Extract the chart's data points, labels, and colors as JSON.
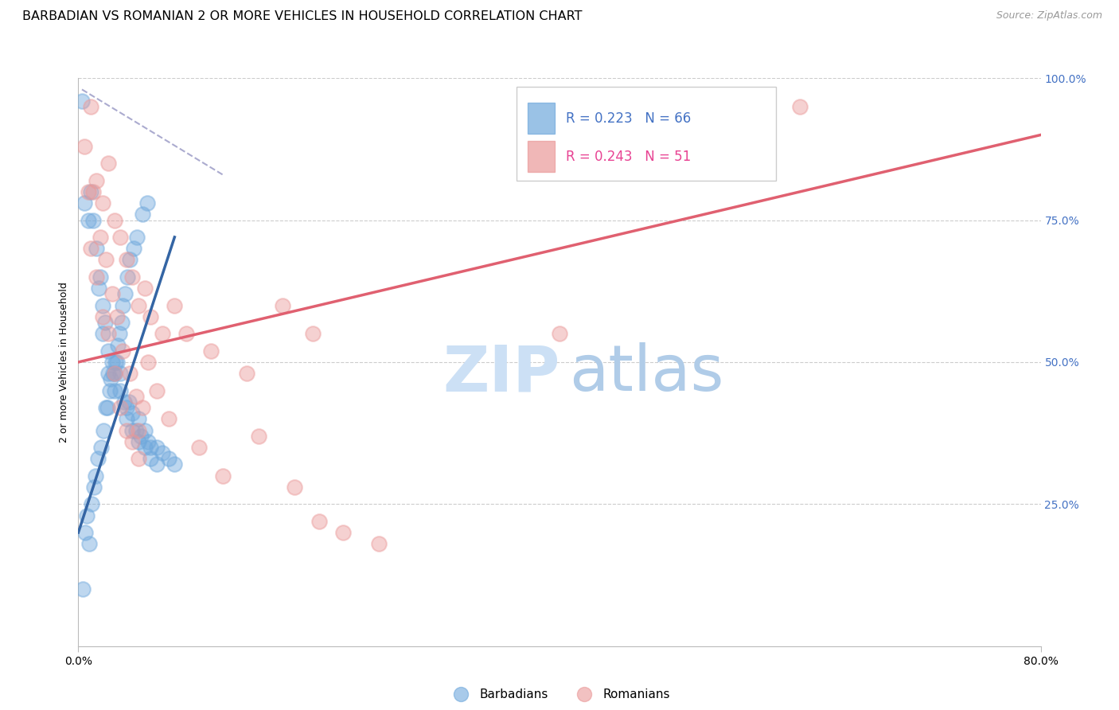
{
  "title": "BARBADIAN VS ROMANIAN 2 OR MORE VEHICLES IN HOUSEHOLD CORRELATION CHART",
  "source": "Source: ZipAtlas.com",
  "ylabel": "2 or more Vehicles in Household",
  "xlim": [
    0.0,
    80.0
  ],
  "ylim": [
    0.0,
    100.0
  ],
  "legend_blue_r": "R = 0.223",
  "legend_blue_n": "N = 66",
  "legend_pink_r": "R = 0.243",
  "legend_pink_n": "N = 51",
  "legend_label_blue": "Barbadians",
  "legend_label_pink": "Romanians",
  "blue_scatter_x": [
    0.5,
    1.0,
    1.2,
    1.5,
    1.8,
    2.0,
    2.0,
    2.2,
    2.5,
    2.5,
    2.8,
    3.0,
    3.0,
    3.2,
    3.5,
    3.5,
    3.8,
    4.0,
    4.0,
    4.2,
    4.5,
    4.5,
    4.8,
    5.0,
    5.0,
    5.2,
    5.5,
    5.5,
    5.8,
    6.0,
    6.0,
    6.5,
    6.5,
    7.0,
    7.5,
    8.0,
    0.3,
    0.4,
    0.6,
    0.7,
    0.8,
    0.9,
    1.1,
    1.3,
    1.4,
    1.6,
    1.7,
    1.9,
    2.1,
    2.3,
    2.4,
    2.6,
    2.7,
    2.9,
    3.1,
    3.3,
    3.4,
    3.6,
    3.7,
    3.9,
    4.1,
    4.3,
    4.6,
    4.9,
    5.3,
    5.7
  ],
  "blue_scatter_y": [
    78.0,
    80.0,
    75.0,
    70.0,
    65.0,
    60.0,
    55.0,
    57.0,
    52.0,
    48.0,
    50.0,
    48.0,
    45.0,
    50.0,
    48.0,
    45.0,
    43.0,
    42.0,
    40.0,
    43.0,
    41.0,
    38.0,
    38.0,
    40.0,
    36.0,
    37.0,
    38.0,
    35.0,
    36.0,
    35.0,
    33.0,
    35.0,
    32.0,
    34.0,
    33.0,
    32.0,
    96.0,
    10.0,
    20.0,
    23.0,
    75.0,
    18.0,
    25.0,
    28.0,
    30.0,
    33.0,
    63.0,
    35.0,
    38.0,
    42.0,
    42.0,
    45.0,
    47.0,
    48.0,
    50.0,
    53.0,
    55.0,
    57.0,
    60.0,
    62.0,
    65.0,
    68.0,
    70.0,
    72.0,
    76.0,
    78.0
  ],
  "pink_scatter_x": [
    1.0,
    1.5,
    2.0,
    2.5,
    3.0,
    3.5,
    4.0,
    4.5,
    5.0,
    5.5,
    6.0,
    7.0,
    8.0,
    10.0,
    12.0,
    15.0,
    18.0,
    20.0,
    22.0,
    25.0,
    0.5,
    1.2,
    1.8,
    2.3,
    2.8,
    3.2,
    3.7,
    4.3,
    4.8,
    5.3,
    5.8,
    6.5,
    7.5,
    9.0,
    11.0,
    14.0,
    17.0,
    19.5,
    5.0,
    40.0,
    0.8,
    1.0,
    1.5,
    2.0,
    2.5,
    3.0,
    3.5,
    4.0,
    4.5,
    5.0,
    60.0
  ],
  "pink_scatter_y": [
    95.0,
    82.0,
    78.0,
    85.0,
    75.0,
    72.0,
    68.0,
    65.0,
    60.0,
    63.0,
    58.0,
    55.0,
    60.0,
    35.0,
    30.0,
    37.0,
    28.0,
    22.0,
    20.0,
    18.0,
    88.0,
    80.0,
    72.0,
    68.0,
    62.0,
    58.0,
    52.0,
    48.0,
    44.0,
    42.0,
    50.0,
    45.0,
    40.0,
    55.0,
    52.0,
    48.0,
    60.0,
    55.0,
    38.0,
    55.0,
    80.0,
    70.0,
    65.0,
    58.0,
    55.0,
    48.0,
    42.0,
    38.0,
    36.0,
    33.0,
    95.0
  ],
  "blue_line_x1": 0.0,
  "blue_line_y1": 20.0,
  "blue_line_x2": 8.0,
  "blue_line_y2": 72.0,
  "blue_dash_x1": 0.3,
  "blue_dash_y1": 98.0,
  "blue_dash_x2": 12.0,
  "blue_dash_y2": 83.0,
  "pink_line_x1": 0.0,
  "pink_line_y1": 50.0,
  "pink_line_x2": 80.0,
  "pink_line_y2": 90.0,
  "background_color": "#ffffff",
  "blue_color": "#6fa8dc",
  "pink_color": "#ea9999",
  "blue_line_color": "#3465a4",
  "pink_line_color": "#e06070",
  "grid_color": "#cccccc",
  "watermark_zip_color": "#cce0f5",
  "watermark_atlas_color": "#b0cce8",
  "title_fontsize": 11.5,
  "source_fontsize": 9,
  "axis_label_fontsize": 9,
  "tick_fontsize": 10
}
